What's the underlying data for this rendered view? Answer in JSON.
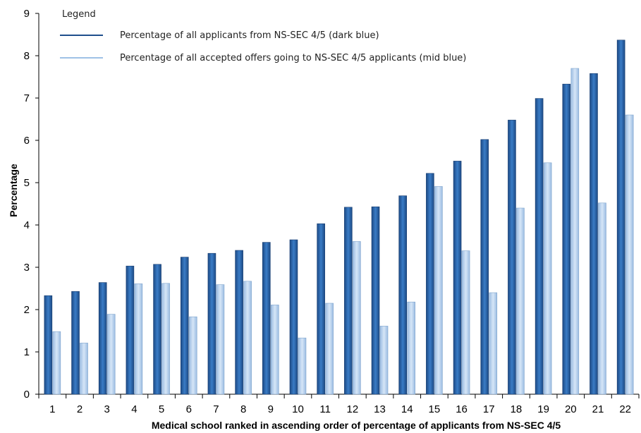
{
  "chart_data": {
    "type": "bar",
    "xlabel": "Medical school ranked in ascending order of percentage of applicants from NS-SEC 4/5",
    "ylabel": "Percentage",
    "ylim": [
      0,
      9
    ],
    "yticks": [
      "0",
      "1",
      "2",
      "3",
      "4",
      "5",
      "6",
      "7",
      "8",
      "9"
    ],
    "categories": [
      "1",
      "2",
      "3",
      "4",
      "5",
      "6",
      "7",
      "8",
      "9",
      "10",
      "11",
      "12",
      "13",
      "14",
      "15",
      "16",
      "17",
      "18",
      "19",
      "20",
      "21",
      "22"
    ],
    "grid": false,
    "legend": {
      "title": "Legend",
      "placement": "top-left",
      "entries": [
        "Percentage of all applicants from NS-SEC 4/5 (dark blue)",
        "Percentage of all accepted offers going to NS-SEC 4/5 applicants (mid blue)"
      ]
    },
    "series": [
      {
        "color": "#2E6DB4",
        "values": [
          2.33,
          2.43,
          2.64,
          3.03,
          3.07,
          3.24,
          3.33,
          3.4,
          3.59,
          3.65,
          4.03,
          4.42,
          4.43,
          4.69,
          5.22,
          5.51,
          6.02,
          6.48,
          6.99,
          7.33,
          7.58,
          8.37
        ]
      },
      {
        "color": "#B8D3EE",
        "values": [
          1.48,
          1.21,
          1.89,
          2.61,
          2.62,
          1.83,
          2.59,
          2.67,
          2.11,
          1.33,
          2.15,
          3.61,
          1.61,
          2.18,
          4.91,
          3.39,
          2.4,
          4.4,
          5.47,
          7.7,
          4.52,
          6.6
        ]
      }
    ]
  }
}
